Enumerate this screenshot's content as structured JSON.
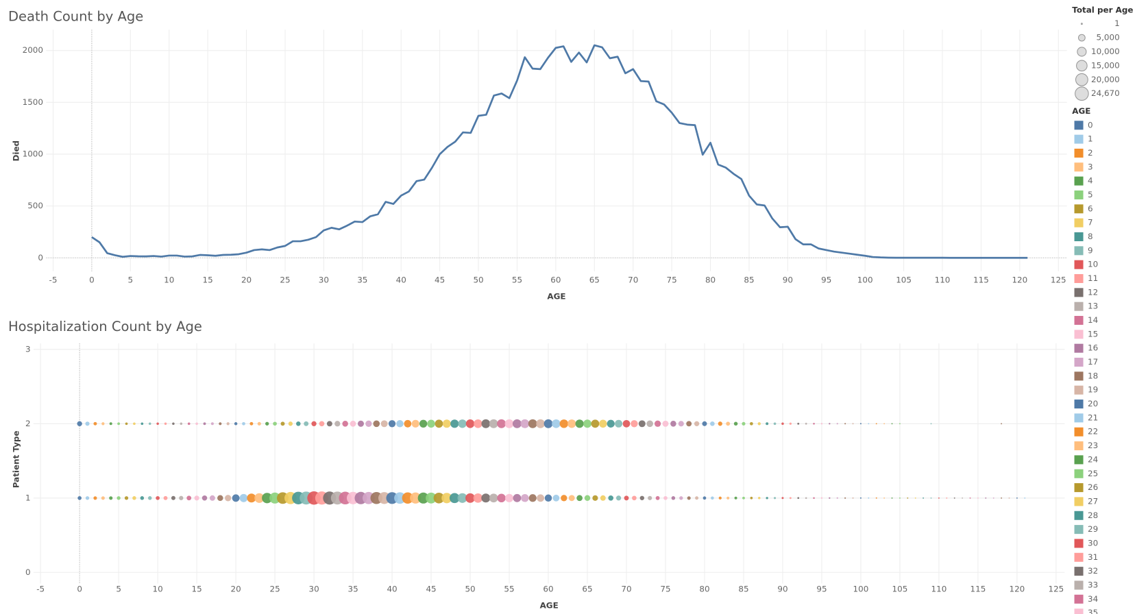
{
  "chart_data": [
    {
      "type": "line",
      "title": "Death Count by Age",
      "x_label": "AGE",
      "y_label": "Died",
      "x": [
        0,
        1,
        2,
        3,
        4,
        5,
        6,
        7,
        8,
        9,
        10,
        11,
        12,
        13,
        14,
        15,
        16,
        17,
        18,
        19,
        20,
        21,
        22,
        23,
        24,
        25,
        26,
        27,
        28,
        29,
        30,
        31,
        32,
        33,
        34,
        35,
        36,
        37,
        38,
        39,
        40,
        41,
        42,
        43,
        44,
        45,
        46,
        47,
        48,
        49,
        50,
        51,
        52,
        53,
        54,
        55,
        56,
        57,
        58,
        59,
        60,
        61,
        62,
        63,
        64,
        65,
        66,
        67,
        68,
        69,
        70,
        71,
        72,
        73,
        74,
        75,
        76,
        77,
        78,
        79,
        80,
        81,
        82,
        83,
        84,
        85,
        86,
        87,
        88,
        89,
        90,
        91,
        92,
        93,
        94,
        95,
        96,
        97,
        98,
        99,
        100,
        101,
        102,
        103,
        104,
        105,
        106,
        107,
        108,
        109,
        110,
        111,
        112,
        113,
        114,
        115,
        116,
        117,
        118,
        119,
        120,
        121
      ],
      "values": [
        200,
        150,
        45,
        25,
        10,
        18,
        15,
        14,
        18,
        12,
        22,
        22,
        12,
        14,
        28,
        25,
        20,
        28,
        30,
        35,
        50,
        75,
        82,
        75,
        100,
        115,
        160,
        160,
        175,
        200,
        265,
        290,
        275,
        310,
        350,
        345,
        400,
        420,
        540,
        520,
        600,
        640,
        740,
        755,
        870,
        1000,
        1070,
        1120,
        1210,
        1205,
        1370,
        1380,
        1565,
        1585,
        1540,
        1710,
        1935,
        1825,
        1820,
        1930,
        2025,
        2040,
        1890,
        1980,
        1885,
        2050,
        2030,
        1925,
        1940,
        1780,
        1820,
        1705,
        1700,
        1510,
        1480,
        1400,
        1300,
        1285,
        1280,
        995,
        1110,
        900,
        870,
        810,
        760,
        600,
        515,
        505,
        380,
        295,
        300,
        180,
        130,
        130,
        90,
        75,
        60,
        50,
        40,
        30,
        20,
        8,
        4,
        2,
        1,
        1,
        1,
        1,
        1,
        1,
        1,
        0,
        0,
        0,
        0,
        0,
        0,
        0,
        0,
        0,
        0,
        0
      ],
      "color": "#4e79a7",
      "xlim": [
        -5.9,
        126.1
      ],
      "ylim": [
        -130,
        2200
      ],
      "xticks": [
        -5,
        0,
        5,
        10,
        15,
        20,
        25,
        30,
        35,
        40,
        45,
        50,
        55,
        60,
        65,
        70,
        75,
        80,
        85,
        90,
        95,
        100,
        105,
        110,
        115,
        120,
        125
      ],
      "yticks": [
        0,
        500,
        1000,
        1500,
        2000
      ],
      "grid": true
    },
    {
      "type": "bubble",
      "title": "Hospitalization Count by Age",
      "x_label": "AGE",
      "y_label": "Patient Type",
      "x": [
        0,
        1,
        2,
        3,
        4,
        5,
        6,
        7,
        8,
        9,
        10,
        11,
        12,
        13,
        14,
        15,
        16,
        17,
        18,
        19,
        20,
        21,
        22,
        23,
        24,
        25,
        26,
        27,
        28,
        29,
        30,
        31,
        32,
        33,
        34,
        35,
        36,
        37,
        38,
        39,
        40,
        41,
        42,
        43,
        44,
        45,
        46,
        47,
        48,
        49,
        50,
        51,
        52,
        53,
        54,
        55,
        56,
        57,
        58,
        59,
        60,
        61,
        62,
        63,
        64,
        65,
        66,
        67,
        68,
        69,
        70,
        71,
        72,
        73,
        74,
        75,
        76,
        77,
        78,
        79,
        80,
        81,
        82,
        83,
        84,
        85,
        86,
        87,
        88,
        89,
        90,
        91,
        92,
        93,
        94,
        95,
        96,
        97,
        98,
        99,
        100,
        101,
        102,
        103,
        104,
        105,
        106,
        107,
        108,
        109,
        110,
        111,
        112,
        113,
        114,
        115,
        116,
        117,
        118,
        119,
        120,
        121
      ],
      "series": [
        {
          "y": 1,
          "sizes": [
            1200,
            1000,
            900,
            900,
            900,
            1000,
            1000,
            1100,
            1100,
            1100,
            1200,
            1300,
            1400,
            1600,
            2000,
            2300,
            2600,
            3000,
            3600,
            4500,
            6500,
            8000,
            10000,
            12000,
            14000,
            16000,
            18000,
            20000,
            21500,
            23000,
            24670,
            24000,
            23500,
            23000,
            22000,
            21000,
            20500,
            20000,
            19500,
            19000,
            18500,
            17500,
            17000,
            16500,
            16000,
            15500,
            15000,
            14000,
            13000,
            12000,
            11500,
            11000,
            10000,
            9500,
            9000,
            8500,
            8000,
            7500,
            7000,
            6500,
            6000,
            5000,
            4500,
            4000,
            3800,
            3500,
            3200,
            3000,
            2700,
            2400,
            2100,
            1900,
            1700,
            1500,
            1300,
            1200,
            1100,
            1000,
            900,
            800,
            700,
            600,
            500,
            450,
            400,
            350,
            300,
            250,
            200,
            150,
            120,
            100,
            80,
            60,
            50,
            40,
            30,
            20,
            15,
            10,
            8,
            5,
            4,
            3,
            2,
            2,
            1,
            1,
            1,
            1,
            1,
            1,
            1,
            1,
            1,
            1,
            1,
            1,
            1,
            1,
            1,
            1
          ]
        },
        {
          "y": 2,
          "sizes": [
            2500,
            1500,
            800,
            500,
            400,
            350,
            300,
            300,
            300,
            250,
            250,
            250,
            250,
            250,
            300,
            300,
            350,
            400,
            450,
            500,
            600,
            700,
            800,
            900,
            1000,
            1200,
            1400,
            1600,
            1800,
            2100,
            2500,
            2800,
            3000,
            3300,
            3600,
            3900,
            4200,
            4500,
            4900,
            5300,
            5700,
            6000,
            6400,
            6800,
            7200,
            7600,
            7900,
            8200,
            8500,
            8800,
            9100,
            9300,
            9500,
            9600,
            9700,
            9800,
            9800,
            9800,
            9700,
            9600,
            9500,
            9200,
            9000,
            8800,
            8500,
            8200,
            7900,
            7500,
            7100,
            6700,
            6300,
            5800,
            5300,
            4800,
            4400,
            4000,
            3600,
            3200,
            2900,
            2500,
            2200,
            1900,
            1600,
            1300,
            1100,
            900,
            700,
            550,
            400,
            300,
            250,
            180,
            120,
            90,
            60,
            40,
            30,
            20,
            10,
            8,
            5,
            3,
            2,
            2,
            1,
            1,
            null,
            null,
            null,
            1,
            null,
            null,
            null,
            null,
            null,
            null,
            null,
            null,
            1,
            null,
            null,
            null
          ]
        }
      ],
      "palette": [
        "#4e79a7",
        "#a0cbe8",
        "#f28e2b",
        "#ffbe7d",
        "#59a14f",
        "#8cd17d",
        "#b6992d",
        "#f1ce63",
        "#499894",
        "#86bcb6",
        "#e15759",
        "#ff9d9a",
        "#79706e",
        "#bab0ac",
        "#d37295",
        "#fabfd2",
        "#b07aa1",
        "#d4a6c8",
        "#9d7660",
        "#d7b5a6"
      ],
      "xlim": [
        -5.9,
        126.1
      ],
      "ylim": [
        -0.15,
        3.08
      ],
      "xticks": [
        -5,
        0,
        5,
        10,
        15,
        20,
        25,
        30,
        35,
        40,
        45,
        50,
        55,
        60,
        65,
        70,
        75,
        80,
        85,
        90,
        95,
        100,
        105,
        110,
        115,
        120,
        125
      ],
      "yticks": [
        0,
        1,
        2,
        3
      ],
      "grid": true,
      "size_legend": {
        "title": "Total per Age",
        "values": [
          1,
          {
            "value": 5000,
            "label": "5,000"
          },
          {
            "value": 10000,
            "label": "10,000"
          },
          {
            "value": 15000,
            "label": "15,000"
          },
          {
            "value": 20000,
            "label": "20,000"
          },
          {
            "value": 24670,
            "label": "24,670"
          }
        ]
      },
      "color_legend": {
        "title": "AGE",
        "items": [
          0,
          1,
          2,
          3,
          4,
          5,
          6,
          7,
          8,
          9,
          10,
          11,
          12,
          13,
          14,
          15,
          16,
          17,
          18,
          19,
          20,
          21,
          22,
          23,
          24,
          25,
          26,
          27,
          28,
          29,
          30,
          31,
          32,
          33,
          34,
          35
        ]
      }
    }
  ]
}
